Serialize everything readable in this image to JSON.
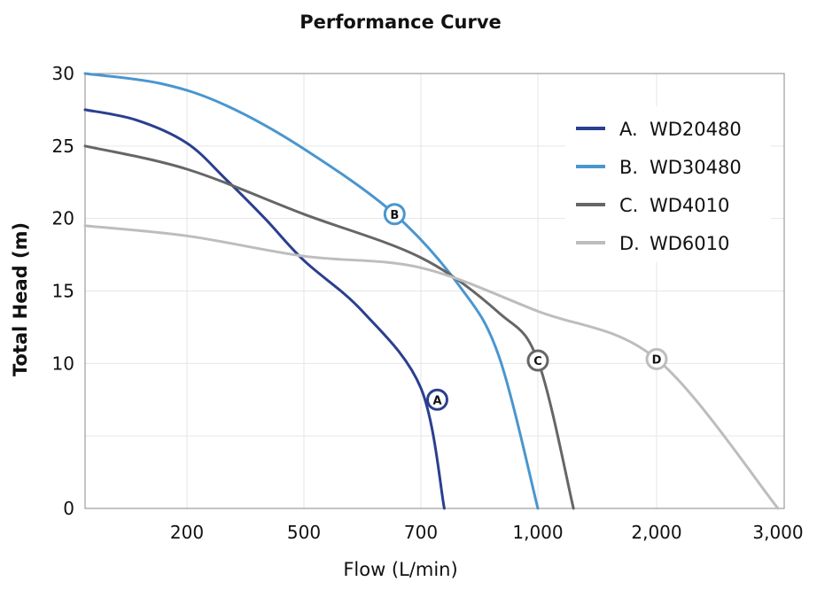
{
  "chart_data": {
    "type": "line",
    "title": "Performance Curve",
    "xlabel": "Flow (L/min)",
    "ylabel": "Total Head (m)",
    "x_tick_labels": [
      "200",
      "500",
      "700",
      "1,000",
      "2,000",
      "3,000"
    ],
    "y_ticks": [
      0,
      10,
      15,
      20,
      25,
      30
    ],
    "ylim": [
      0,
      30
    ],
    "grid": true,
    "legend_position": "top-right",
    "series": [
      {
        "name": "WD20480",
        "letter": "A",
        "color": "#2b3f8f",
        "points": [
          [
            0,
            27.5
          ],
          [
            100,
            26.8
          ],
          [
            200,
            25.2
          ],
          [
            300,
            22.7
          ],
          [
            400,
            20.0
          ],
          [
            500,
            17.1
          ],
          [
            600,
            13.6
          ],
          [
            700,
            8.3
          ],
          [
            760,
            0
          ]
        ],
        "marker": [
          742,
          7.5
        ]
      },
      {
        "name": "WD30480",
        "letter": "B",
        "color": "#4a96cf",
        "points": [
          [
            0,
            30.0
          ],
          [
            150,
            29.3
          ],
          [
            300,
            27.8
          ],
          [
            500,
            24.8
          ],
          [
            655,
            20.3
          ],
          [
            800,
            15.3
          ],
          [
            900,
            10.5
          ],
          [
            1000,
            0
          ]
        ],
        "marker": [
          655,
          20.3
        ]
      },
      {
        "name": "WD4010",
        "letter": "C",
        "color": "#666666",
        "points": [
          [
            0,
            25.0
          ],
          [
            200,
            23.4
          ],
          [
            500,
            20.3
          ],
          [
            700,
            17.3
          ],
          [
            900,
            13.5
          ],
          [
            1000,
            10.2
          ],
          [
            1300,
            0
          ]
        ],
        "marker": [
          1000,
          10.2
        ]
      },
      {
        "name": "WD6010",
        "letter": "D",
        "color": "#bdbdbd",
        "points": [
          [
            0,
            19.5
          ],
          [
            200,
            18.8
          ],
          [
            500,
            17.4
          ],
          [
            700,
            16.6
          ],
          [
            1000,
            13.6
          ],
          [
            2000,
            10.3
          ],
          [
            3000,
            0
          ]
        ],
        "marker": [
          2000,
          10.3
        ]
      }
    ]
  }
}
